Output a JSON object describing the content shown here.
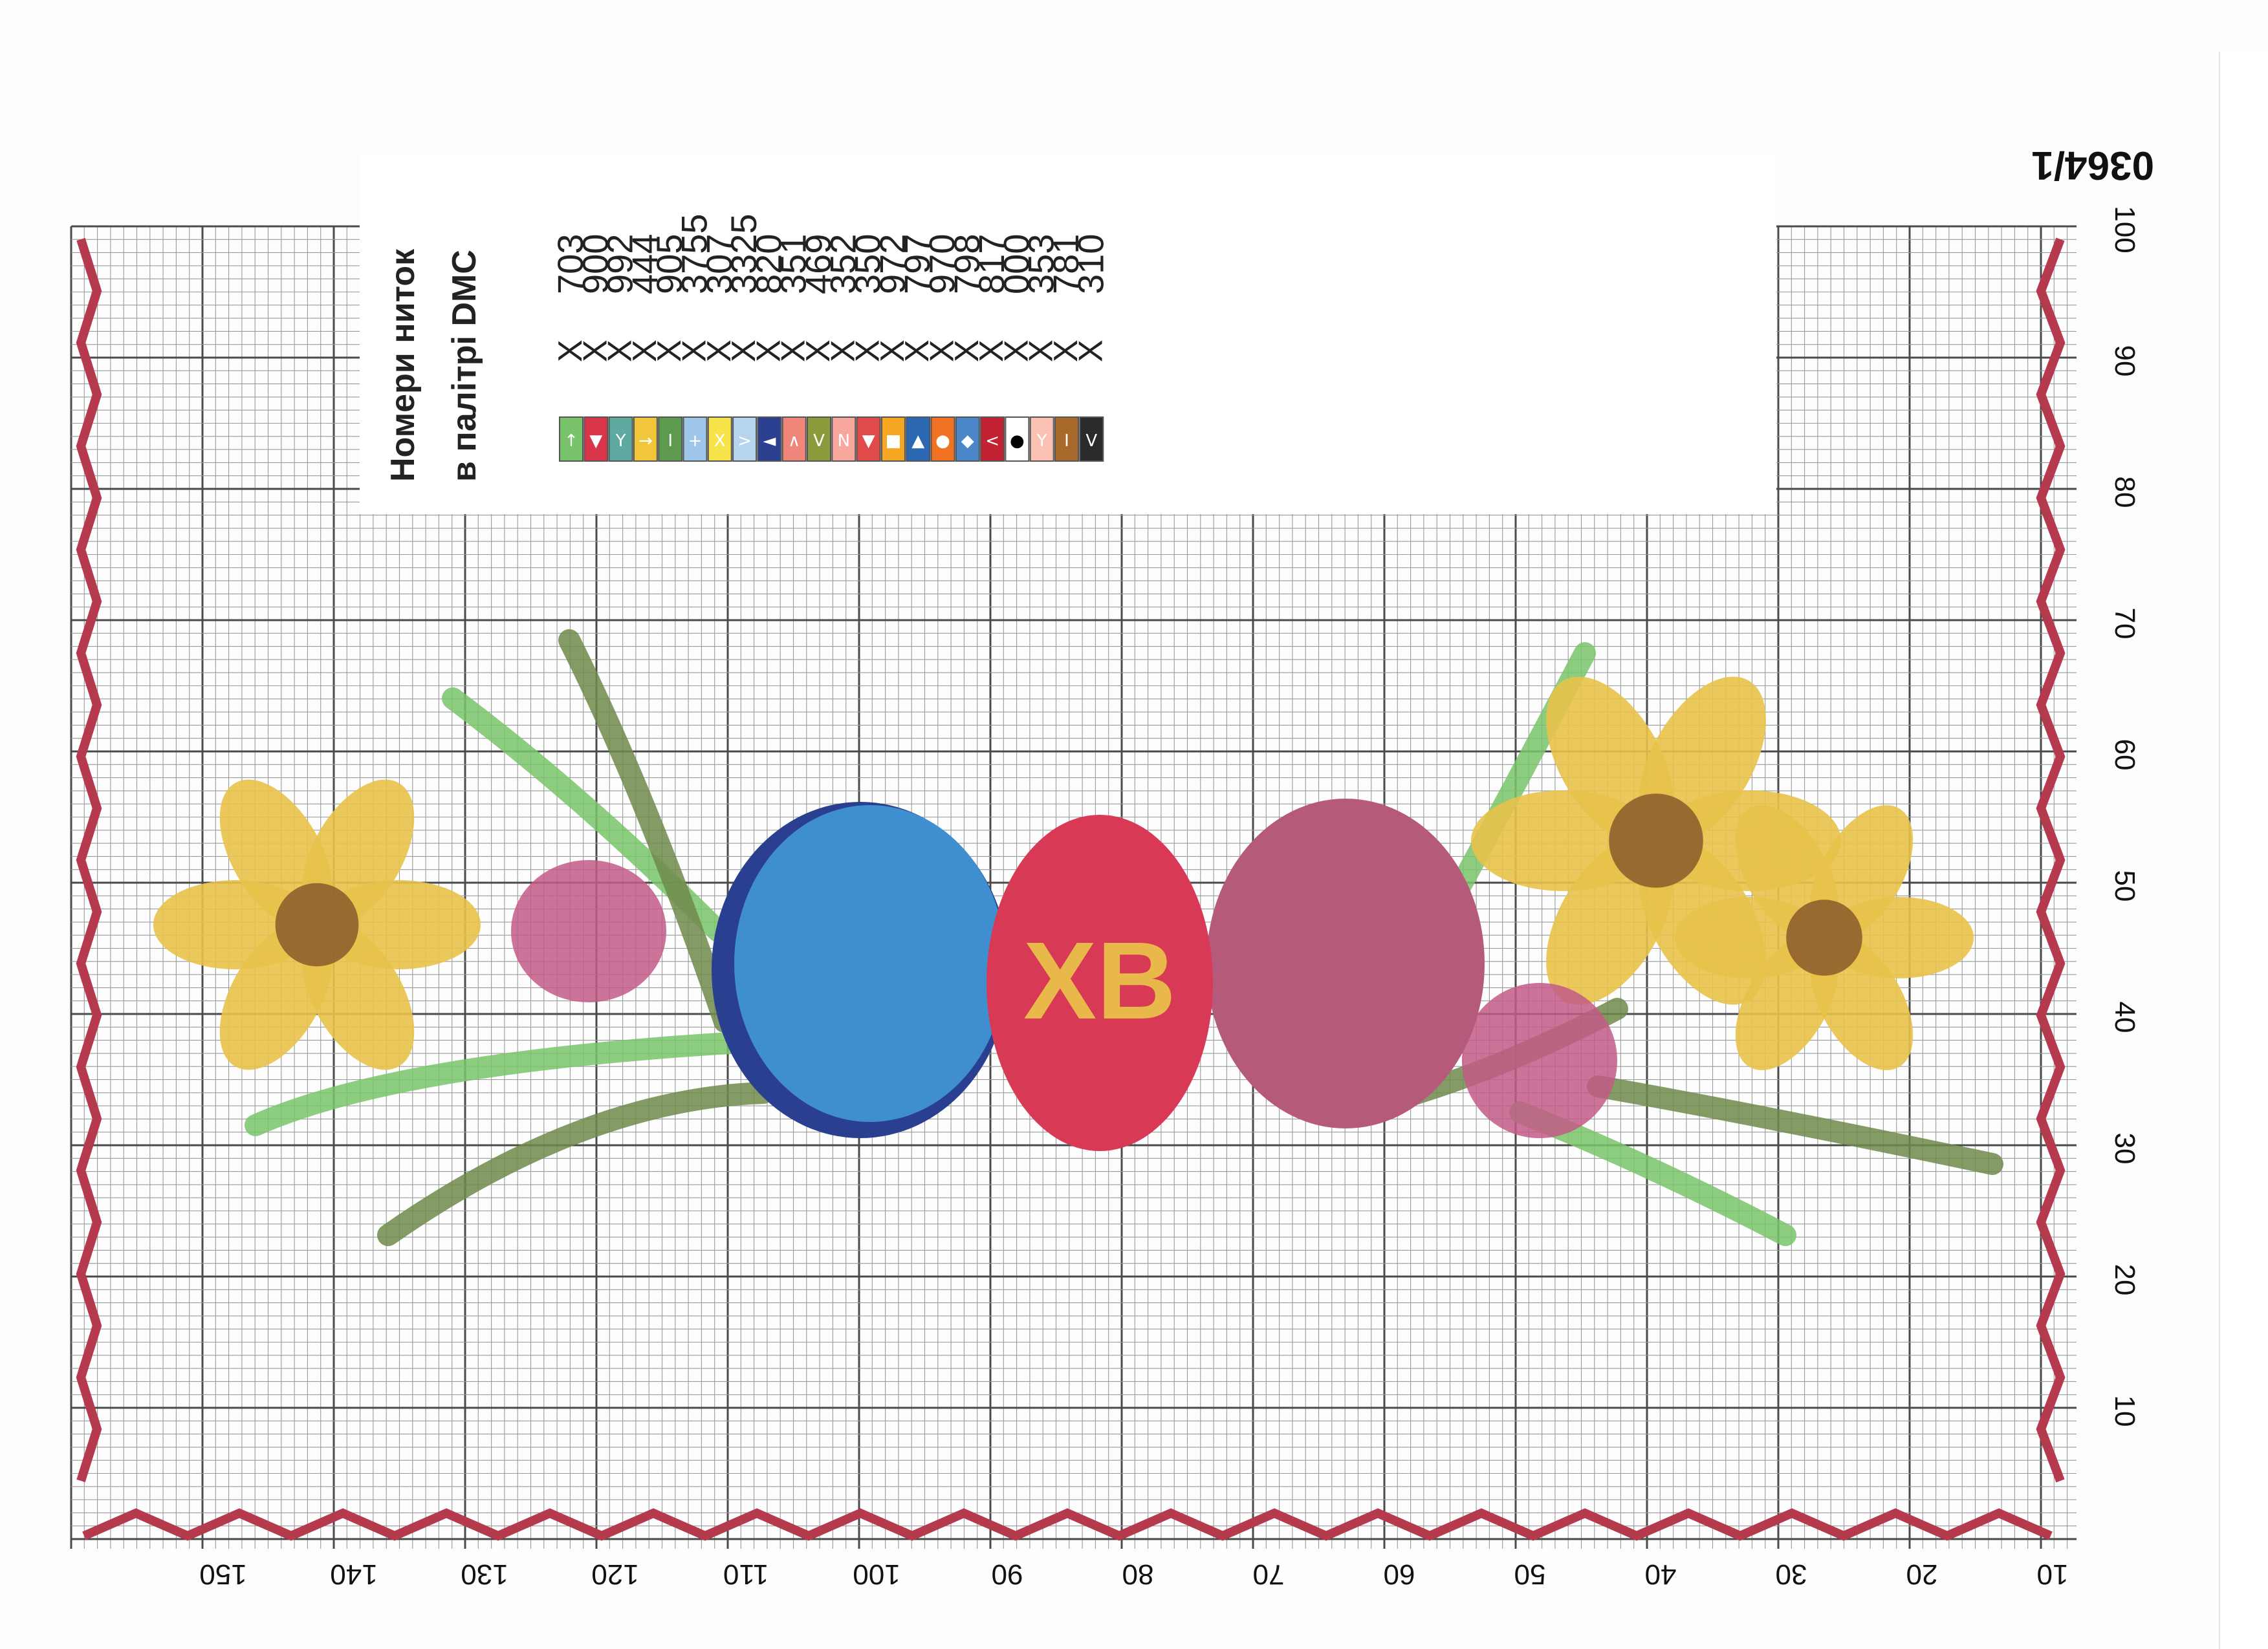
{
  "pattern_id": "0364/1",
  "legend": {
    "title_line1": "Номери ниток",
    "title_line2": "в палітрі DMC",
    "times_sign": "X",
    "entries": [
      {
        "code": "703",
        "color": "#79c46a",
        "symbol": "↑"
      },
      {
        "code": "900",
        "color": "#d8354b",
        "symbol": "▼"
      },
      {
        "code": "992",
        "color": "#5eaaa0",
        "symbol": "Y"
      },
      {
        "code": "444",
        "color": "#f2c63a",
        "symbol": "→"
      },
      {
        "code": "905",
        "color": "#5d9a4e",
        "symbol": "I"
      },
      {
        "code": "3755",
        "color": "#9ec6e8",
        "symbol": "+"
      },
      {
        "code": "307",
        "color": "#f7e44a",
        "symbol": "X"
      },
      {
        "code": "3325",
        "color": "#b7d4ef",
        "symbol": ">"
      },
      {
        "code": "820",
        "color": "#2a3f8f",
        "symbol": "◄"
      },
      {
        "code": "351",
        "color": "#f08579",
        "symbol": "∧"
      },
      {
        "code": "469",
        "color": "#8b9b3c",
        "symbol": "V"
      },
      {
        "code": "352",
        "color": "#f7a79c",
        "symbol": "N"
      },
      {
        "code": "350",
        "color": "#e04a4a",
        "symbol": "▼"
      },
      {
        "code": "972",
        "color": "#f5a623",
        "symbol": "■"
      },
      {
        "code": "797",
        "color": "#2d68b4",
        "symbol": "▲"
      },
      {
        "code": "970",
        "color": "#f27224",
        "symbol": "●"
      },
      {
        "code": "798",
        "color": "#4a86c8",
        "symbol": "◆"
      },
      {
        "code": "817",
        "color": "#c22232",
        "symbol": "<"
      },
      {
        "code": "000",
        "color": "#ffffff",
        "symbol": "●"
      },
      {
        "code": "353",
        "color": "#fbc2b4",
        "symbol": "Y"
      },
      {
        "code": "781",
        "color": "#a9692a",
        "symbol": "I"
      },
      {
        "code": "310",
        "color": "#2b2b2b",
        "symbol": "V"
      }
    ]
  },
  "axes": {
    "column_labels": [
      "150",
      "140",
      "130",
      "120",
      "110",
      "100",
      "90",
      "80",
      "70",
      "60",
      "50",
      "40",
      "30",
      "20",
      "10"
    ],
    "row_labels": [
      "100",
      "90",
      "80",
      "70",
      "60",
      "50",
      "40",
      "30",
      "20",
      "10"
    ]
  },
  "motif": {
    "egg_text": "XB",
    "colors": {
      "grid_minor": "#9a9a9a",
      "grid_major": "#4a4a4a",
      "border": "#b53a4e",
      "leaf_light": "#79c46a",
      "leaf_dark": "#6f8a4a",
      "daffodil": "#e8c24a",
      "daffodil_center": "#8b5a2b",
      "blue_egg": "#3f8fd0",
      "blue_egg_shade": "#2a3f8f",
      "red_egg": "#d83a55",
      "red_egg_text": "#e9b84a",
      "purple_egg": "#b55a7a",
      "tulip": "#c25a86"
    }
  }
}
